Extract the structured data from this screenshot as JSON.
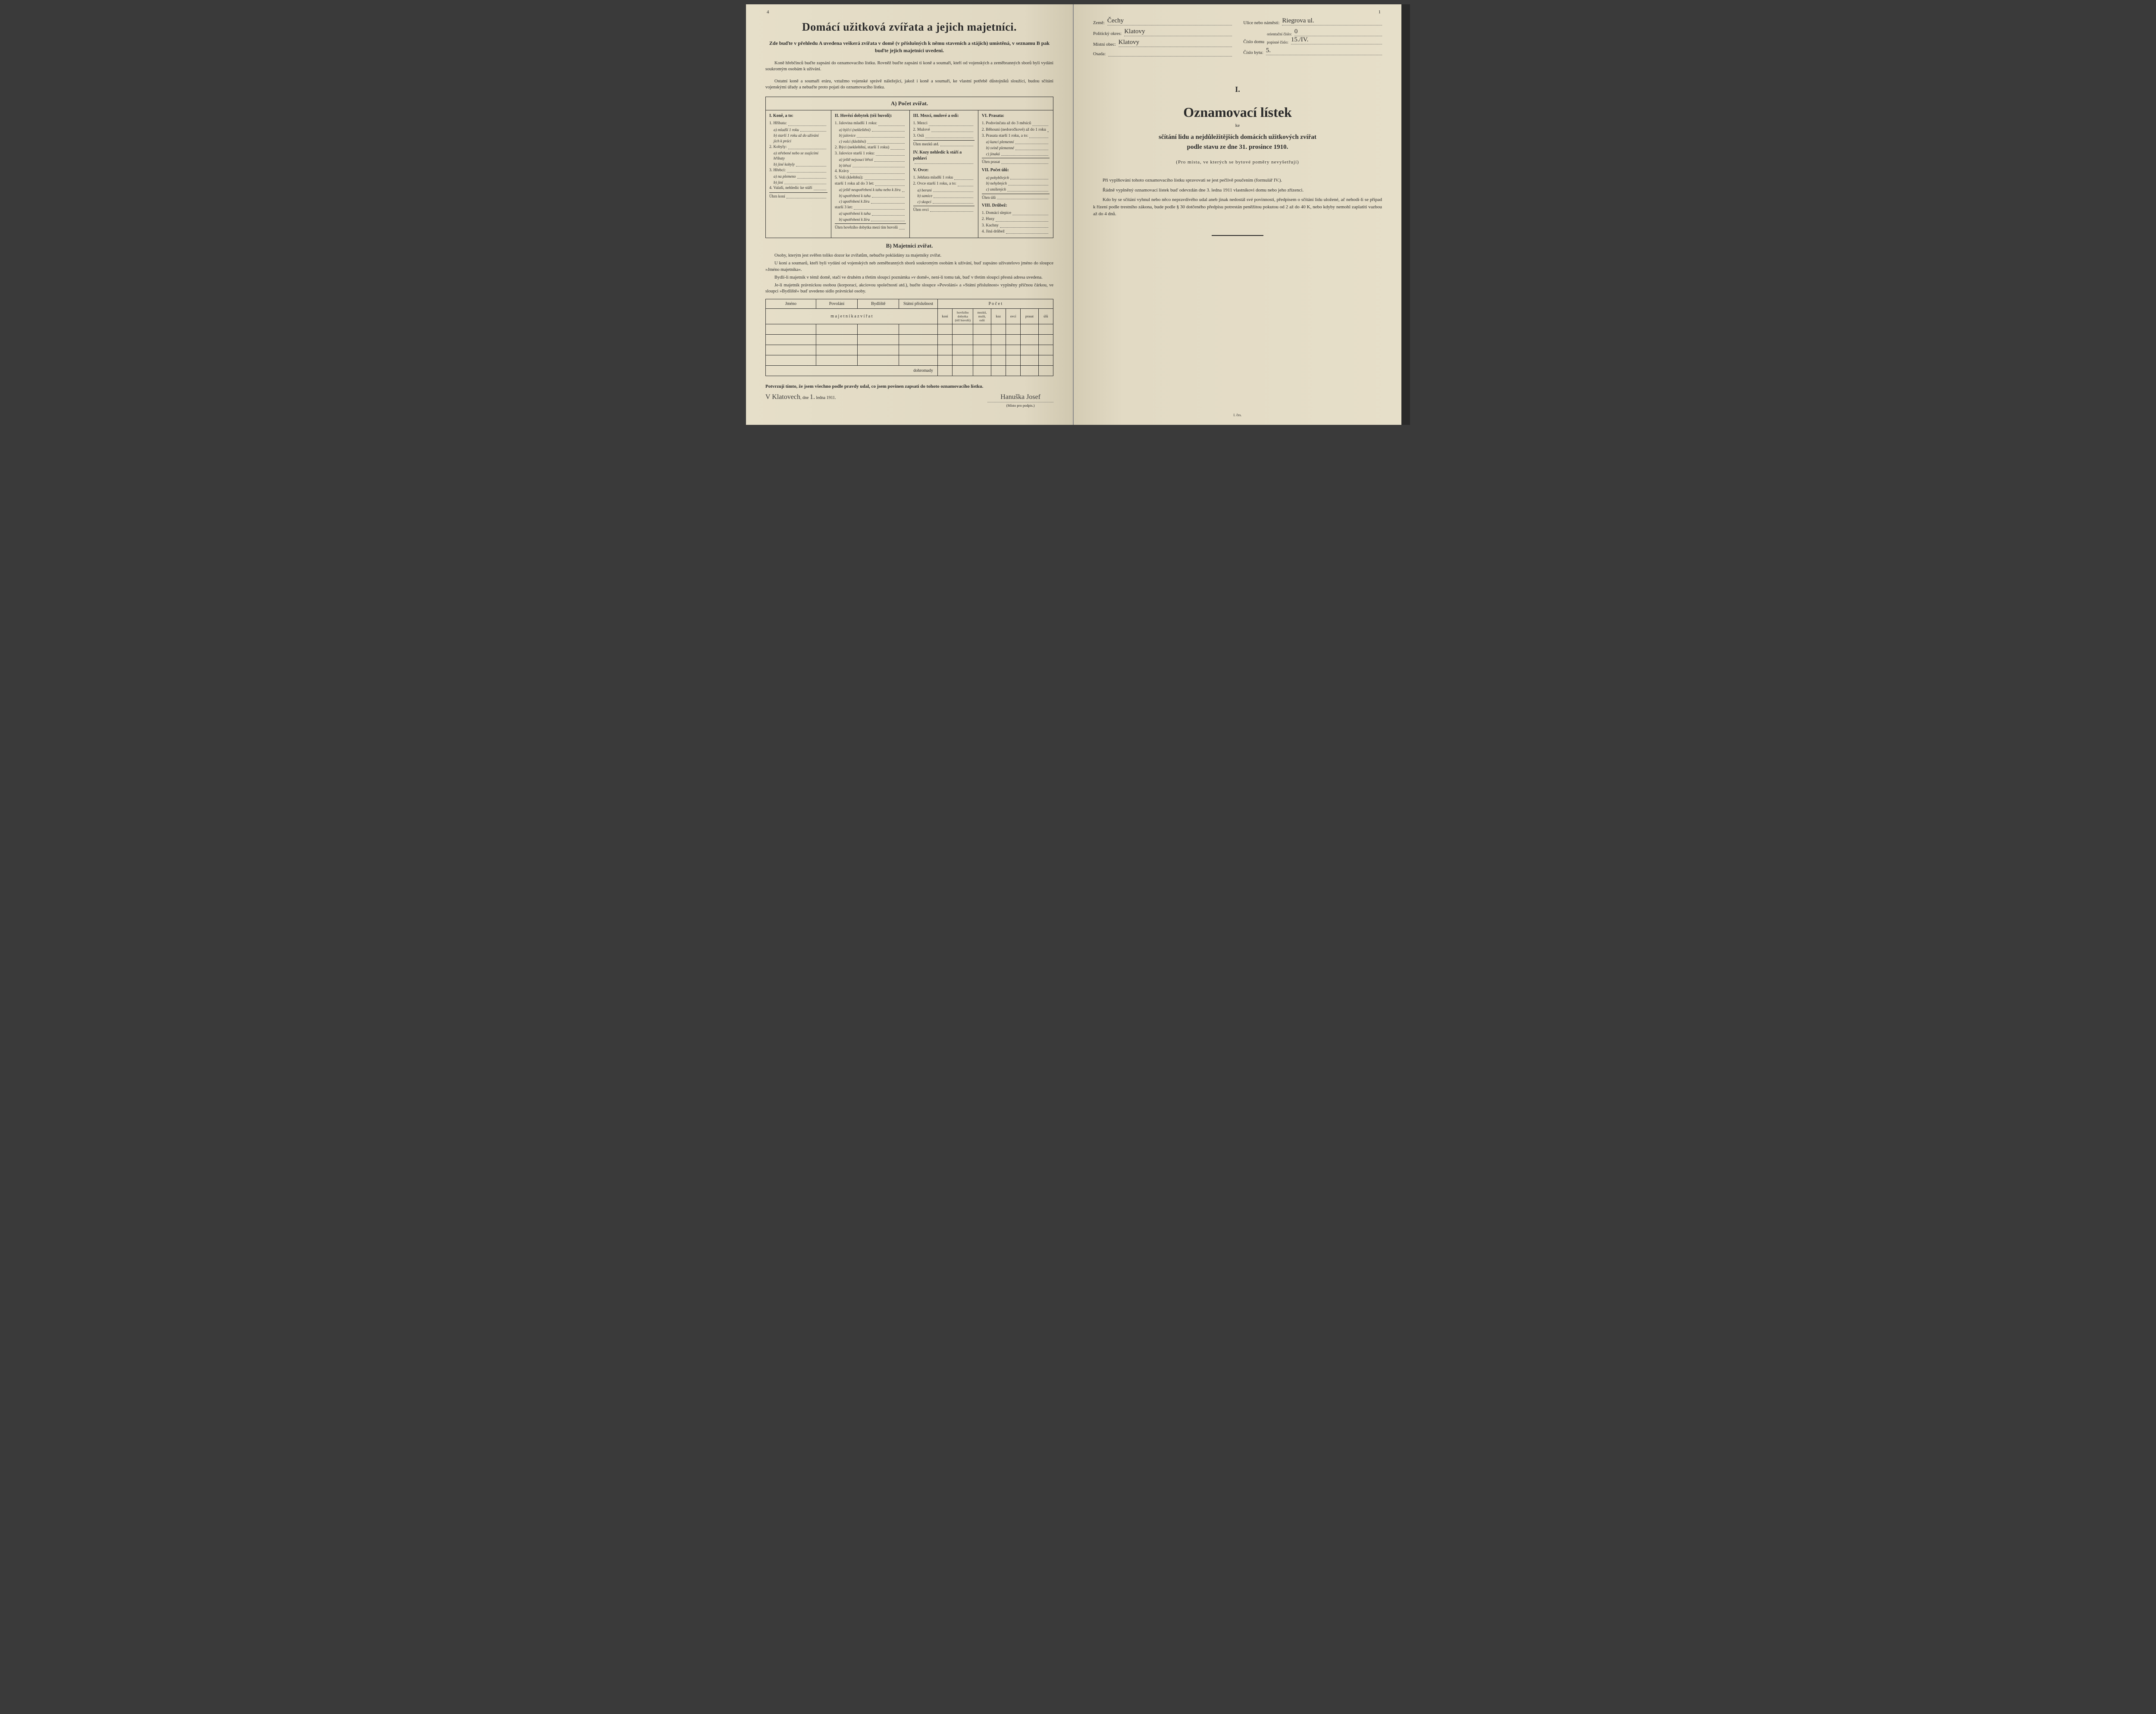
{
  "left": {
    "pageNumber": "4",
    "title": "Domácí užitková zvířata a jejich majetníci.",
    "subtitle": "Zde buďte v přehledu A uvedena veškerá zvířata v domě (v příslušných k němu staveních a stájích) umístěná, v seznamu B pak buďte jejich majetníci uvedeni.",
    "intro1": "Koně hřebčinců buďte zapsáni do oznamovacího lístku. Rovněž buďte zapsáni ti koně a soumaři, kteří od vojenských a zeměbranných sborů byli vydáni soukromým osobám k užívání.",
    "intro2": "Ostatní koně a soumaři eráru, vztažmo vojenské správě náležející, jakož i koně a soumaři, ke vlastní potřebě důstojníků sloužící, budou sčítáni vojenskými úřady a nebuďte proto pojati do oznamovacího lístku.",
    "sectA": "A) Počet zvířat.",
    "cols": {
      "c1": {
        "h": "I. Koně, a to:",
        "items": [
          "1. Hříbata:",
          "a) mladší 1 roku",
          "b) starší 1 roku až do užívání jich k práci",
          "2. Kobyly:",
          "a) střebené nebo se ssajícími hříbaty",
          "b) jiné kobyly",
          "3. Hřebci:",
          "a) na plemeno",
          "b) jiní",
          "4. Valaši, nehledíc ke stáří"
        ],
        "total": "Úhrn koní"
      },
      "c2": {
        "h": "II. Hovězí dobytek (též buvoli):",
        "items": [
          "1. Jalovina mladší 1 roku:",
          "a) býčci (nekleštění)",
          "b) jalovice",
          "c) volci (kleštění)",
          "2. Býci (nekleštění, starší 1 roku)",
          "3. Jalovice starší 1 roku:",
          "a) ještě nejsoucí březí",
          "b) březí",
          "4. Krávy",
          "5. Voli (kleštění):",
          "starší 1 roku až do 3 let:",
          "a) ještě neupotřebení k tahu nebo k žíru",
          "b) upotřebení k tahu",
          "c) upotřebení k žíru",
          "starší 3 let:",
          "a) upotřebení k tahu",
          "b) upotřebení k žíru"
        ],
        "total": "Úhrn hovězího dobytka mezi tím buvolů"
      },
      "c3": {
        "h1": "III. Mezci, mulové a osli:",
        "i1": [
          "1. Mezci",
          "2. Mulové",
          "3. Osli"
        ],
        "t1": "Úhrn mezků atd.",
        "h2": "IV. Kozy nehledíc k stáří a pohlaví",
        "h3": "V. Ovce:",
        "i3": [
          "1. Jehňata mladší 1 roku",
          "2. Ovce starší 1 roku, a to:",
          "a) berani",
          "b) samice",
          "c) skopci"
        ],
        "t3": "Úhrn ovcí"
      },
      "c4": {
        "h1": "VI. Prasata:",
        "i1": [
          "1. Podsvinčata až do 3 měsíců",
          "2. Běhouni (nedoročkové) až do 1 roku",
          "3. Prasata starší 1 roku, a to:",
          "a) kanci plemenní",
          "b) svině plemenné",
          "c) jinaká"
        ],
        "t1": "Úhrn prasat",
        "h2": "VII. Počet úlů:",
        "i2": [
          "a) pohyblivých",
          "b) nehybných",
          "c) smíšených"
        ],
        "t2": "Úhrn úlů",
        "h3": "VIII. Drůbež:",
        "i3": [
          "1. Domácí slepice",
          "2. Husy",
          "3. Kachny",
          "4. Jiná drůbež"
        ]
      }
    },
    "sectB": "B) Majetníci zvířat.",
    "ownersText1": "Osoby, kterým jest svěřen toliko dozor ke zvířatům, nebuďte pokládány za majetníky zvířat.",
    "ownersText2": "U koní a soumarů, kteří byli vydáni od vojenských neb zeměbranných sborů soukromým osobám k užívání, buď zapsáno uživatelovo jméno do sloupce »Jméno majetníka«.",
    "ownersText3": "Bydlí-li majetník v témž domě, stačí ve druhém a třetím sloupci poznámka »v domě«, není-li tomu tak, buď v třetím sloupci přesná adresa uvedena.",
    "ownersText4": "Je-li majetník právnickou osobou (korporací, akciovou společností atd.), buďte sloupce »Povolání« a »Státní příslušnost« vyplněny příčnou čárkou, ve sloupci »Bydliště« buď uvedeno sídlo právnické osoby.",
    "th": {
      "jmeno": "Jméno",
      "povolani": "Povolání",
      "bydliste": "Bydliště",
      "statni": "Státní příslušnost",
      "pocet": "P o č e t",
      "majetnika": "m a j e t n í k a   z v í ř a t",
      "koni": "koní",
      "hov": "hovězího dobytka (též buvolů)",
      "mezku": "mezků, mulů, oslů",
      "koz": "koz",
      "ovci": "ovcí",
      "prasat": "prasat",
      "ulu": "úlů"
    },
    "dohromady": "dohromady",
    "confirm": "Potvrzuji tímto, že jsem všechno podle pravdy udal, co jsem povinen zapsati do tohoto oznamovacího lístku.",
    "place": "V Klatovech",
    "dne": "dne",
    "day": "1.",
    "month": "ledna 1911.",
    "sig": "Hanuška Josef",
    "sigLabel": "(Místo pro podpis.)"
  },
  "right": {
    "pageNumber": "1",
    "fields": {
      "zeme_l": "Země:",
      "zeme_v": "Čechy",
      "okres_l": "Politický okres:",
      "okres_v": "Klatovy",
      "obec_l": "Místní obec:",
      "obec_v": "Klatovy",
      "osada_l": "Osada:",
      "osada_v": "",
      "ulice_l": "Ulice nebo náměstí:",
      "ulice_v": "Riegrova ul.",
      "cislo_l": "Číslo domu",
      "orient_l": "orientační číslo:",
      "orient_v": "0",
      "popis_l": "popisné číslo:",
      "popis_v": "15./IV.",
      "byt_l": "Číslo bytu:",
      "byt_v": "5."
    },
    "roman": "I.",
    "title": "Oznamovací lístek",
    "ke": "ke",
    "sub1": "sčítání lidu a nejdůležitějších domácích užitkových zvířat",
    "sub2": "podle stavu ze dne 31. prosince 1910.",
    "paren": "(Pro místa, ve kterých se bytové poměry nevyšetřují)",
    "p1": "Při vyplňování tohoto oznamovacího lístku spravovati se jest pečlivě poučením (formulář IV.).",
    "p2": "Řádně vyplněný oznamovací lístek buď odevzdán dne 3. ledna 1911 vlastníkovi domu nebo jeho zřízenci.",
    "p3": "Kdo by se sčítání vyhnul nebo něco nepravdivého udal aneb jinak nedostál své povinnosti, předpisem o sčítání lidu uložené, ač nehodí-li se případ k řízení podle trestního zákona, bude podle § 30 dotčeného předpisu potrestán peněžitou pokutou od 2 až do 40 K, nebo kdyby nemohl zaplatiti vazbou až do 4 dnů.",
    "footer": "I. čes."
  }
}
